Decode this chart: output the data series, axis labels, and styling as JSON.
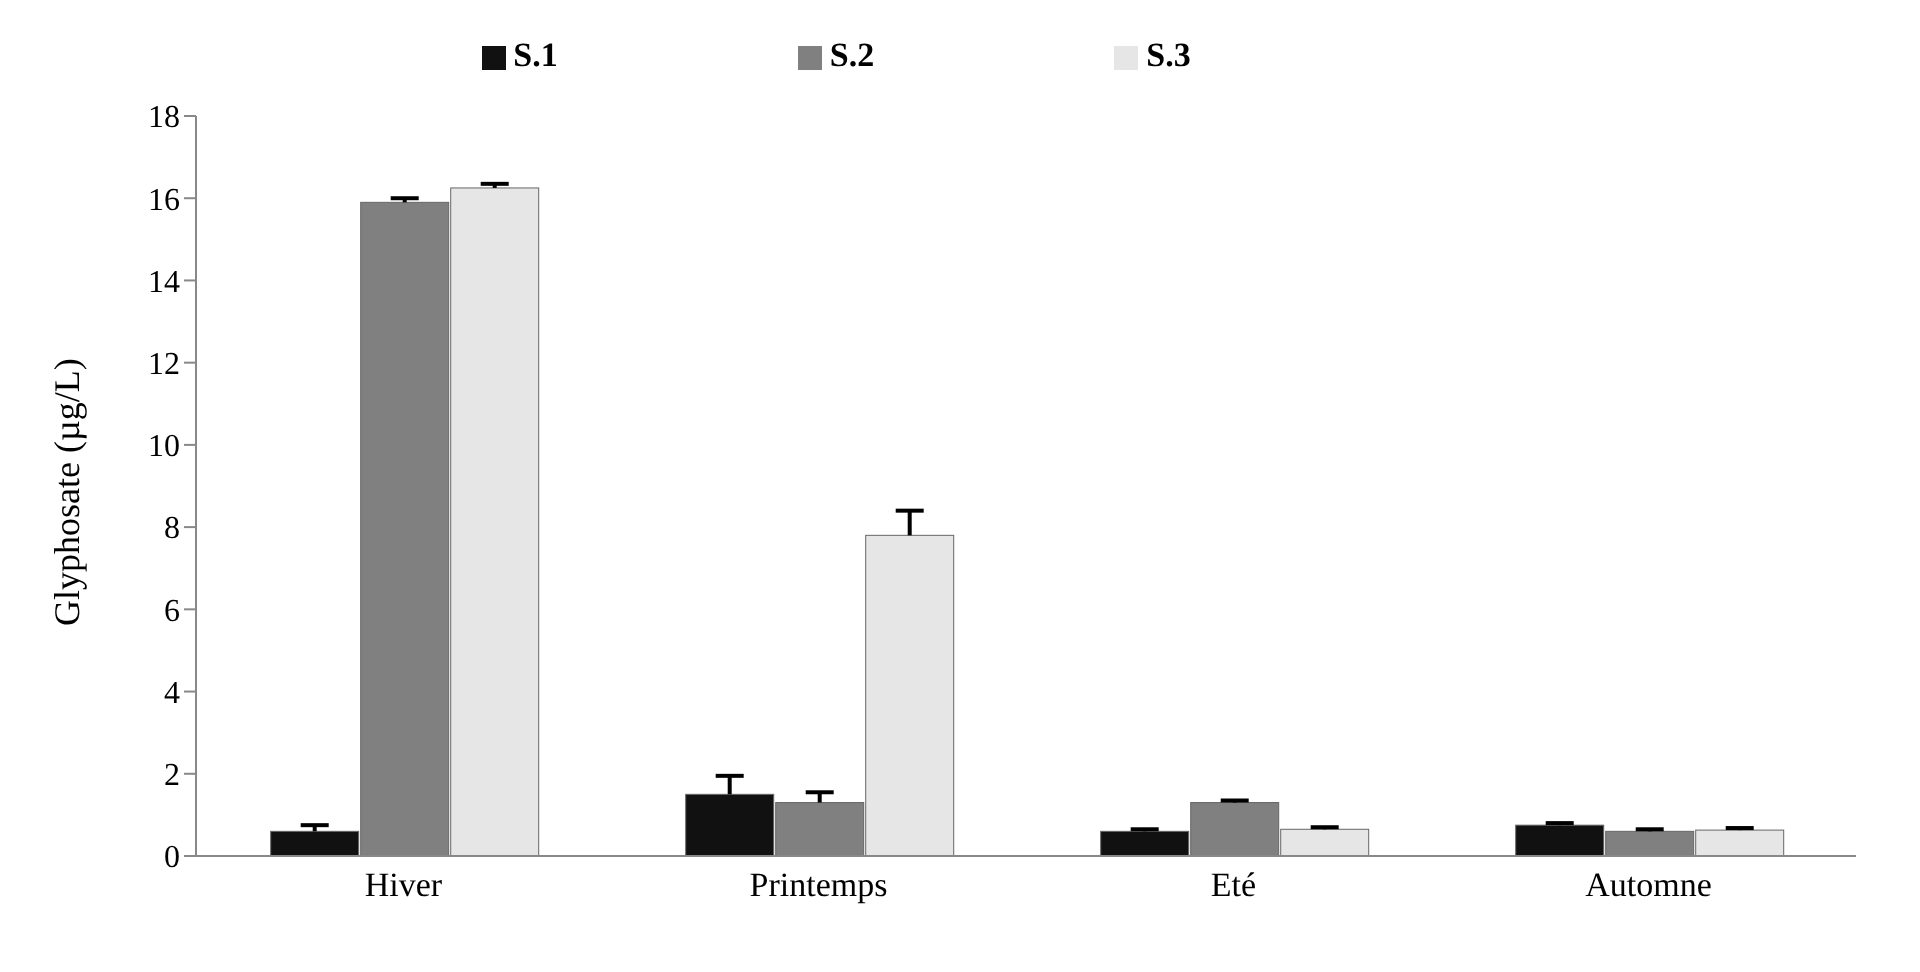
{
  "chart_data": {
    "type": "bar",
    "ylabel": "Glyphosate (µg/L)",
    "categories": [
      "Hiver",
      "Printemps",
      "Eté",
      "Automne"
    ],
    "series": [
      {
        "name": "S.1",
        "color": "#111111",
        "values": [
          0.6,
          1.5,
          0.6,
          0.75
        ],
        "errors": [
          [
            0.6,
            0.75
          ],
          [
            1.5,
            1.95
          ],
          [
            0.6,
            0.65
          ],
          [
            0.75,
            0.8
          ]
        ]
      },
      {
        "name": "S.2",
        "color": "#808080",
        "values": [
          15.9,
          1.3,
          1.3,
          0.6
        ],
        "errors": [
          [
            15.9,
            16.0
          ],
          [
            1.3,
            1.55
          ],
          [
            1.3,
            1.35
          ],
          [
            0.6,
            0.65
          ]
        ]
      },
      {
        "name": "S.3",
        "color": "#e6e6e6",
        "values": [
          16.25,
          7.8,
          0.65,
          0.63
        ],
        "errors": [
          [
            16.25,
            16.35
          ],
          [
            7.8,
            8.4
          ],
          [
            0.65,
            0.7
          ],
          [
            0.63,
            0.68
          ]
        ]
      }
    ],
    "ylim": [
      0,
      18
    ],
    "yticks": [
      0,
      2,
      4,
      6,
      8,
      10,
      12,
      14,
      16,
      18
    ],
    "grid": false,
    "legend": "top"
  }
}
